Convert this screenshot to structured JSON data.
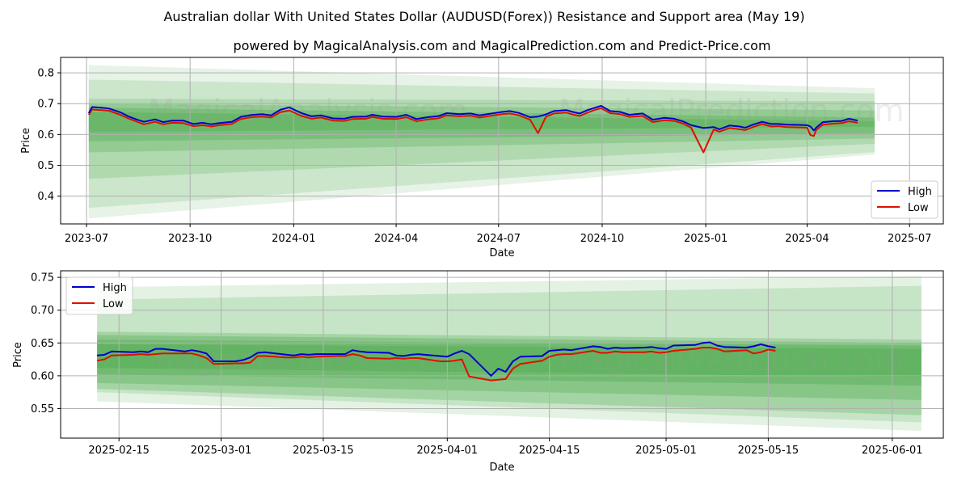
{
  "title": "Australian dollar With United States Dollar (AUDUSD(Forex)) Resistance and Support area (May 19)",
  "subtitle": "powered by MagicalAnalysis.com and MagicalPrediction.com and Predict-Price.com",
  "watermarks": [
    "MagicalAnalysis.com",
    "MagicalPrediction.com"
  ],
  "colors": {
    "high": "#0000cc",
    "low": "#dd1100",
    "band": "#2e9a2e",
    "grid": "#b0b0b0"
  },
  "chart_data": [
    {
      "type": "line",
      "xlabel": "Date",
      "ylabel": "Price",
      "x_ticks": [
        "2023-07",
        "2023-10",
        "2024-01",
        "2024-04",
        "2024-07",
        "2024-10",
        "2025-01",
        "2025-04",
        "2025-07"
      ],
      "y_ticks": [
        "0.4",
        "0.5",
        "0.6",
        "0.7",
        "0.8"
      ],
      "xlim": [
        "2023-06-08",
        "2025-07-31"
      ],
      "ylim": [
        0.31,
        0.85
      ],
      "grid": true,
      "legend_position": "bottom-right",
      "legend": [
        "High",
        "Low"
      ],
      "series": [
        {
          "name": "High",
          "x": [
            "2023-07-03",
            "2023-07-06",
            "2023-07-14",
            "2023-07-21",
            "2023-07-31",
            "2023-08-07",
            "2023-08-15",
            "2023-08-21",
            "2023-08-31",
            "2023-09-07",
            "2023-09-15",
            "2023-09-25",
            "2023-10-04",
            "2023-10-12",
            "2023-10-20",
            "2023-10-27",
            "2023-11-07",
            "2023-11-15",
            "2023-11-24",
            "2023-12-04",
            "2023-12-12",
            "2023-12-20",
            "2023-12-28",
            "2024-01-08",
            "2024-01-17",
            "2024-01-25",
            "2024-02-05",
            "2024-02-15",
            "2024-02-22",
            "2024-03-05",
            "2024-03-11",
            "2024-03-20",
            "2024-04-01",
            "2024-04-10",
            "2024-04-19",
            "2024-04-29",
            "2024-05-09",
            "2024-05-16",
            "2024-05-27",
            "2024-06-06",
            "2024-06-14",
            "2024-06-25",
            "2024-07-04",
            "2024-07-11",
            "2024-07-19",
            "2024-07-29",
            "2024-08-05",
            "2024-08-12",
            "2024-08-19",
            "2024-08-30",
            "2024-09-06",
            "2024-09-11",
            "2024-09-18",
            "2024-09-24",
            "2024-09-30",
            "2024-10-08",
            "2024-10-17",
            "2024-10-25",
            "2024-11-06",
            "2024-11-15",
            "2024-11-25",
            "2024-12-04",
            "2024-12-12",
            "2024-12-19",
            "2024-12-30",
            "2025-01-08",
            "2025-01-13",
            "2025-01-22",
            "2025-01-31",
            "2025-02-05",
            "2025-02-12",
            "2025-02-20",
            "2025-02-28",
            "2025-03-07",
            "2025-03-14",
            "2025-03-24",
            "2025-04-01",
            "2025-04-04",
            "2025-04-07",
            "2025-04-09",
            "2025-04-15",
            "2025-04-24",
            "2025-05-02",
            "2025-05-08",
            "2025-05-16"
          ],
          "values": [
            0.669,
            0.689,
            0.687,
            0.684,
            0.672,
            0.659,
            0.648,
            0.641,
            0.649,
            0.64,
            0.645,
            0.645,
            0.634,
            0.638,
            0.633,
            0.637,
            0.641,
            0.657,
            0.663,
            0.666,
            0.662,
            0.68,
            0.688,
            0.669,
            0.659,
            0.662,
            0.652,
            0.651,
            0.657,
            0.658,
            0.664,
            0.658,
            0.657,
            0.664,
            0.65,
            0.656,
            0.66,
            0.669,
            0.666,
            0.668,
            0.662,
            0.668,
            0.673,
            0.676,
            0.67,
            0.656,
            0.658,
            0.665,
            0.676,
            0.679,
            0.672,
            0.668,
            0.679,
            0.686,
            0.693,
            0.676,
            0.673,
            0.664,
            0.668,
            0.648,
            0.654,
            0.651,
            0.642,
            0.63,
            0.621,
            0.624,
            0.617,
            0.629,
            0.626,
            0.622,
            0.632,
            0.641,
            0.634,
            0.634,
            0.632,
            0.631,
            0.63,
            0.626,
            0.613,
            0.622,
            0.64,
            0.643,
            0.644,
            0.651,
            0.645
          ]
        },
        {
          "name": "Low",
          "x": [
            "2023-07-03",
            "2023-07-06",
            "2023-07-14",
            "2023-07-21",
            "2023-07-31",
            "2023-08-07",
            "2023-08-15",
            "2023-08-21",
            "2023-08-31",
            "2023-09-07",
            "2023-09-15",
            "2023-09-25",
            "2023-10-04",
            "2023-10-12",
            "2023-10-20",
            "2023-10-27",
            "2023-11-07",
            "2023-11-15",
            "2023-11-24",
            "2023-12-04",
            "2023-12-12",
            "2023-12-20",
            "2023-12-28",
            "2024-01-08",
            "2024-01-17",
            "2024-01-25",
            "2024-02-05",
            "2024-02-15",
            "2024-02-22",
            "2024-03-05",
            "2024-03-11",
            "2024-03-20",
            "2024-04-01",
            "2024-04-10",
            "2024-04-19",
            "2024-04-29",
            "2024-05-09",
            "2024-05-16",
            "2024-05-27",
            "2024-06-06",
            "2024-06-14",
            "2024-06-25",
            "2024-07-04",
            "2024-07-11",
            "2024-07-19",
            "2024-07-29",
            "2024-08-05",
            "2024-08-12",
            "2024-08-19",
            "2024-08-30",
            "2024-09-06",
            "2024-09-11",
            "2024-09-18",
            "2024-09-24",
            "2024-09-30",
            "2024-10-08",
            "2024-10-17",
            "2024-10-25",
            "2024-11-06",
            "2024-11-15",
            "2024-11-25",
            "2024-12-04",
            "2024-12-12",
            "2024-12-19",
            "2024-12-30",
            "2025-01-08",
            "2025-01-13",
            "2025-01-22",
            "2025-01-31",
            "2025-02-05",
            "2025-02-12",
            "2025-02-20",
            "2025-02-28",
            "2025-03-07",
            "2025-03-14",
            "2025-03-24",
            "2025-04-01",
            "2025-04-04",
            "2025-04-07",
            "2025-04-09",
            "2025-04-15",
            "2025-04-24",
            "2025-05-02",
            "2025-05-08",
            "2025-05-16"
          ],
          "values": [
            0.664,
            0.681,
            0.679,
            0.677,
            0.664,
            0.652,
            0.641,
            0.633,
            0.641,
            0.633,
            0.638,
            0.637,
            0.627,
            0.63,
            0.626,
            0.63,
            0.634,
            0.65,
            0.656,
            0.658,
            0.655,
            0.672,
            0.678,
            0.66,
            0.651,
            0.655,
            0.645,
            0.644,
            0.65,
            0.651,
            0.657,
            0.651,
            0.65,
            0.656,
            0.643,
            0.649,
            0.653,
            0.662,
            0.659,
            0.661,
            0.655,
            0.661,
            0.666,
            0.668,
            0.662,
            0.648,
            0.604,
            0.657,
            0.668,
            0.671,
            0.664,
            0.66,
            0.671,
            0.679,
            0.685,
            0.669,
            0.666,
            0.657,
            0.66,
            0.64,
            0.646,
            0.644,
            0.635,
            0.622,
            0.542,
            0.616,
            0.609,
            0.621,
            0.617,
            0.614,
            0.624,
            0.634,
            0.626,
            0.627,
            0.624,
            0.623,
            0.622,
            0.598,
            0.595,
            0.614,
            0.632,
            0.635,
            0.637,
            0.643,
            0.638
          ]
        }
      ]
    },
    {
      "type": "line",
      "xlabel": "Date",
      "ylabel": "Price",
      "x_ticks": [
        "2025-02-15",
        "2025-03-01",
        "2025-03-15",
        "2025-04-01",
        "2025-04-15",
        "2025-05-01",
        "2025-05-15",
        "2025-06-01"
      ],
      "y_ticks": [
        "0.55",
        "0.60",
        "0.65",
        "0.70",
        "0.75"
      ],
      "xlim": [
        "2025-02-07",
        "2025-06-08"
      ],
      "ylim": [
        0.505,
        0.76
      ],
      "grid": true,
      "legend_position": "top-left",
      "legend": [
        "High",
        "Low"
      ],
      "series": [
        {
          "name": "High",
          "x": [
            "2025-02-12",
            "2025-02-13",
            "2025-02-14",
            "2025-02-17",
            "2025-02-18",
            "2025-02-19",
            "2025-02-20",
            "2025-02-21",
            "2025-02-24",
            "2025-02-25",
            "2025-02-26",
            "2025-02-27",
            "2025-02-28",
            "2025-03-03",
            "2025-03-04",
            "2025-03-05",
            "2025-03-06",
            "2025-03-07",
            "2025-03-10",
            "2025-03-11",
            "2025-03-12",
            "2025-03-13",
            "2025-03-14",
            "2025-03-17",
            "2025-03-18",
            "2025-03-19",
            "2025-03-20",
            "2025-03-21",
            "2025-03-24",
            "2025-03-25",
            "2025-03-26",
            "2025-03-27",
            "2025-03-28",
            "2025-03-31",
            "2025-04-01",
            "2025-04-02",
            "2025-04-03",
            "2025-04-04",
            "2025-04-07",
            "2025-04-08",
            "2025-04-09",
            "2025-04-10",
            "2025-04-11",
            "2025-04-14",
            "2025-04-15",
            "2025-04-16",
            "2025-04-17",
            "2025-04-18",
            "2025-04-21",
            "2025-04-22",
            "2025-04-23",
            "2025-04-24",
            "2025-04-25",
            "2025-04-28",
            "2025-04-29",
            "2025-04-30",
            "2025-05-01",
            "2025-05-02",
            "2025-05-05",
            "2025-05-06",
            "2025-05-07",
            "2025-05-08",
            "2025-05-09",
            "2025-05-12",
            "2025-05-13",
            "2025-05-14",
            "2025-05-15",
            "2025-05-16"
          ],
          "values": [
            0.631,
            0.632,
            0.637,
            0.636,
            0.637,
            0.636,
            0.641,
            0.641,
            0.637,
            0.639,
            0.637,
            0.634,
            0.622,
            0.622,
            0.624,
            0.628,
            0.635,
            0.636,
            0.632,
            0.631,
            0.633,
            0.632,
            0.633,
            0.633,
            0.633,
            0.639,
            0.637,
            0.636,
            0.635,
            0.631,
            0.63,
            0.632,
            0.633,
            0.63,
            0.629,
            0.634,
            0.638,
            0.633,
            0.6,
            0.611,
            0.606,
            0.622,
            0.629,
            0.63,
            0.638,
            0.639,
            0.64,
            0.639,
            0.645,
            0.644,
            0.641,
            0.643,
            0.642,
            0.643,
            0.644,
            0.642,
            0.641,
            0.646,
            0.647,
            0.65,
            0.651,
            0.646,
            0.644,
            0.643,
            0.645,
            0.648,
            0.645,
            0.643
          ]
        },
        {
          "name": "Low",
          "x": [
            "2025-02-12",
            "2025-02-13",
            "2025-02-14",
            "2025-02-17",
            "2025-02-18",
            "2025-02-19",
            "2025-02-20",
            "2025-02-21",
            "2025-02-24",
            "2025-02-25",
            "2025-02-26",
            "2025-02-27",
            "2025-02-28",
            "2025-03-03",
            "2025-03-04",
            "2025-03-05",
            "2025-03-06",
            "2025-03-07",
            "2025-03-10",
            "2025-03-11",
            "2025-03-12",
            "2025-03-13",
            "2025-03-14",
            "2025-03-17",
            "2025-03-18",
            "2025-03-19",
            "2025-03-20",
            "2025-03-21",
            "2025-03-24",
            "2025-03-25",
            "2025-03-26",
            "2025-03-27",
            "2025-03-28",
            "2025-03-31",
            "2025-04-01",
            "2025-04-02",
            "2025-04-03",
            "2025-04-04",
            "2025-04-07",
            "2025-04-08",
            "2025-04-09",
            "2025-04-10",
            "2025-04-11",
            "2025-04-14",
            "2025-04-15",
            "2025-04-16",
            "2025-04-17",
            "2025-04-18",
            "2025-04-21",
            "2025-04-22",
            "2025-04-23",
            "2025-04-24",
            "2025-04-25",
            "2025-04-28",
            "2025-04-29",
            "2025-04-30",
            "2025-05-01",
            "2025-05-02",
            "2025-05-05",
            "2025-05-06",
            "2025-05-07",
            "2025-05-08",
            "2025-05-09",
            "2025-05-12",
            "2025-05-13",
            "2025-05-14",
            "2025-05-15",
            "2025-05-16"
          ],
          "values": [
            0.623,
            0.625,
            0.631,
            0.632,
            0.633,
            0.632,
            0.633,
            0.634,
            0.634,
            0.634,
            0.631,
            0.627,
            0.618,
            0.619,
            0.619,
            0.62,
            0.63,
            0.63,
            0.628,
            0.628,
            0.629,
            0.628,
            0.629,
            0.63,
            0.63,
            0.633,
            0.631,
            0.627,
            0.626,
            0.627,
            0.626,
            0.627,
            0.627,
            0.622,
            0.622,
            0.623,
            0.625,
            0.599,
            0.593,
            0.594,
            0.595,
            0.611,
            0.618,
            0.623,
            0.629,
            0.632,
            0.633,
            0.633,
            0.638,
            0.635,
            0.635,
            0.637,
            0.636,
            0.636,
            0.637,
            0.635,
            0.636,
            0.638,
            0.641,
            0.643,
            0.643,
            0.641,
            0.637,
            0.639,
            0.634,
            0.636,
            0.64,
            0.638
          ]
        }
      ]
    }
  ]
}
